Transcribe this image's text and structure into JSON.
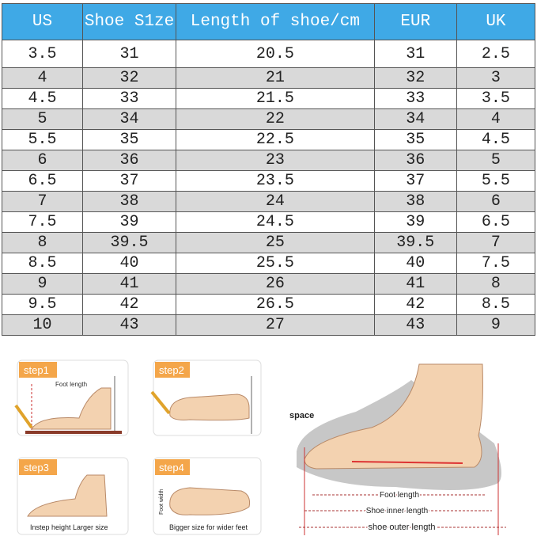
{
  "table": {
    "header": [
      "US",
      "Shoe S1ze",
      "Length of shoe/cm",
      "EUR",
      "UK"
    ],
    "rows": [
      [
        "3.5",
        "31",
        "20.5",
        "31",
        "2.5"
      ],
      [
        "4",
        "32",
        "21",
        "32",
        "3"
      ],
      [
        "4.5",
        "33",
        "21.5",
        "33",
        "3.5"
      ],
      [
        "5",
        "34",
        "22",
        "34",
        "4"
      ],
      [
        "5.5",
        "35",
        "22.5",
        "35",
        "4.5"
      ],
      [
        "6",
        "36",
        "23",
        "36",
        "5"
      ],
      [
        "6.5",
        "37",
        "23.5",
        "37",
        "5.5"
      ],
      [
        "7",
        "38",
        "24",
        "38",
        "6"
      ],
      [
        "7.5",
        "39",
        "24.5",
        "39",
        "6.5"
      ],
      [
        "8",
        "39.5",
        "25",
        "39.5",
        "7"
      ],
      [
        "8.5",
        "40",
        "25.5",
        "40",
        "7.5"
      ],
      [
        "9",
        "41",
        "26",
        "41",
        "8"
      ],
      [
        "9.5",
        "42",
        "26.5",
        "42",
        "8.5"
      ],
      [
        "10",
        "43",
        "27",
        "43",
        "9"
      ]
    ]
  },
  "steps": [
    {
      "label": "step1",
      "note": "Foot length"
    },
    {
      "label": "step2"
    },
    {
      "label": "step3",
      "note": "Instep height Larger size"
    },
    {
      "label": "step4",
      "side_note": "Foot width",
      "note": "Bigger size for wider feet"
    }
  ],
  "diagram": {
    "space": "space",
    "foot_length": "Foot length",
    "inner_length": "Shoe inner length",
    "outer_length": "shoe outer length"
  }
}
